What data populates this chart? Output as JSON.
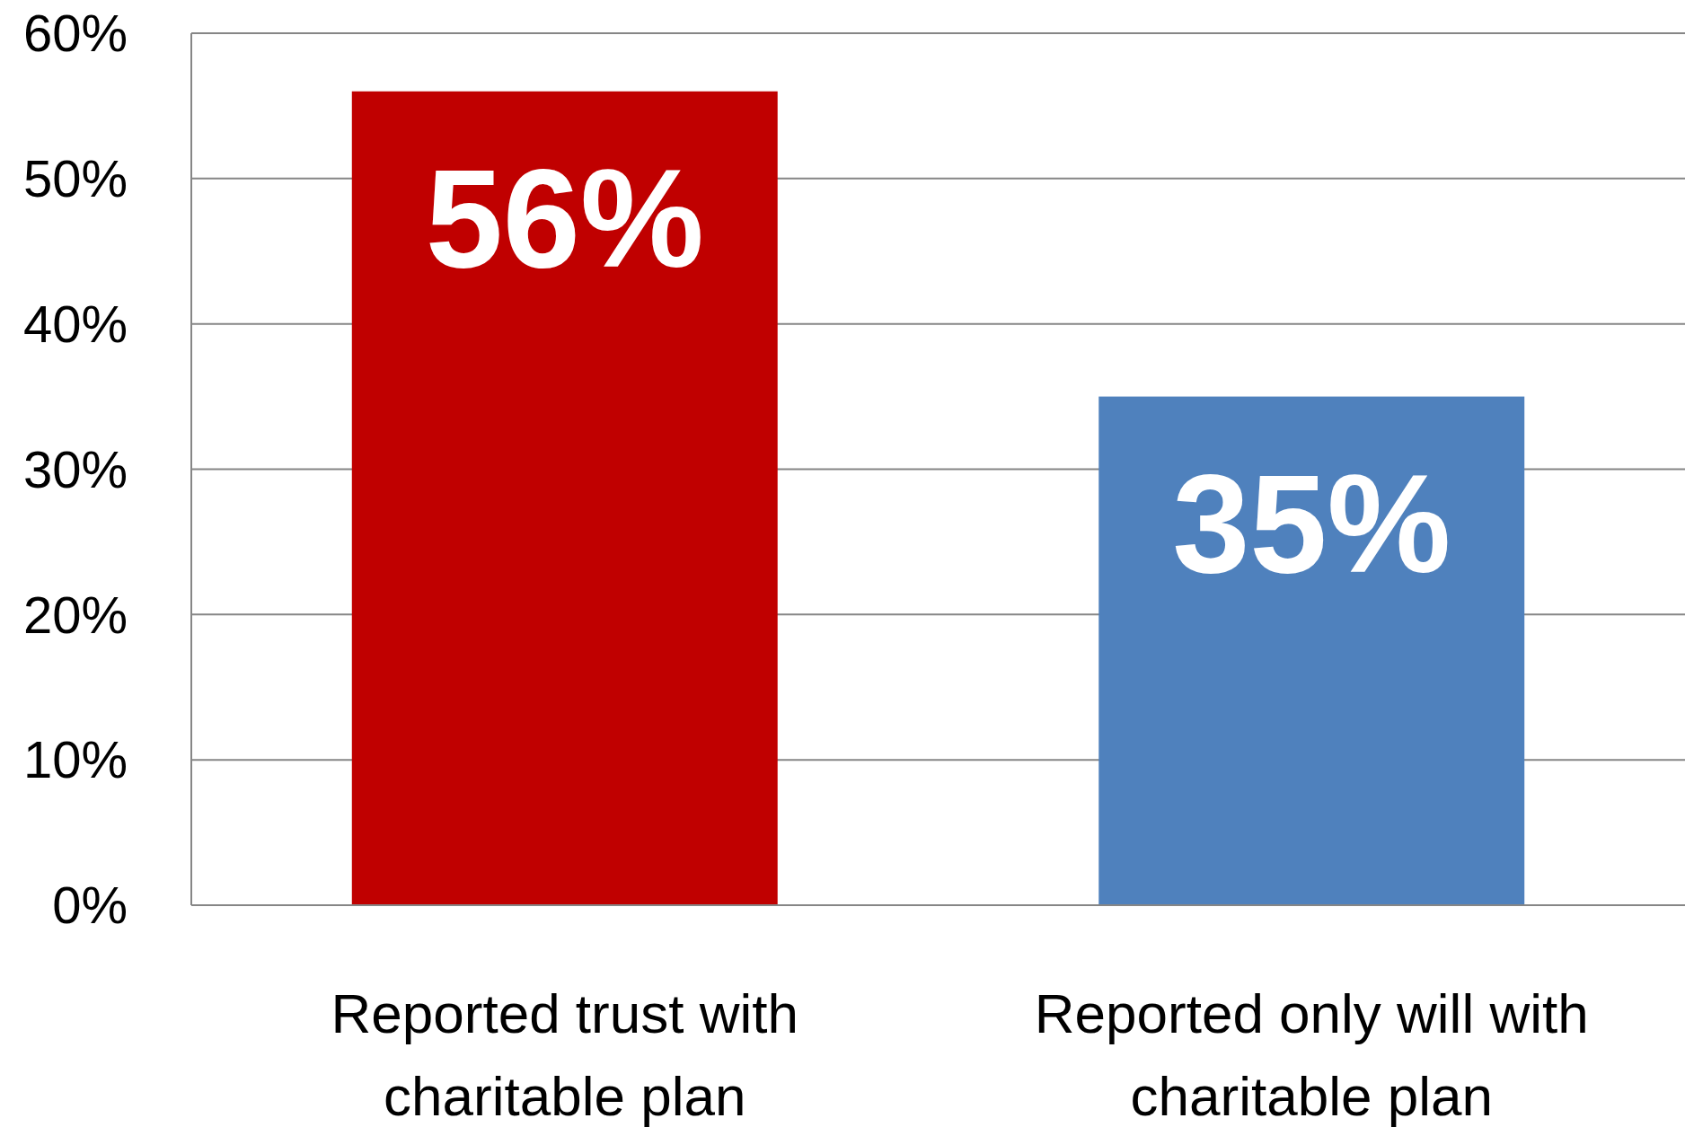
{
  "chart_data": {
    "type": "bar",
    "categories": [
      "Reported trust with charitable plan",
      "Reported only will with charitable plan"
    ],
    "values": [
      56,
      35
    ],
    "colors": [
      "#c00000",
      "#4f81bd"
    ],
    "value_labels": [
      "56%",
      "35%"
    ],
    "ylim": [
      0,
      60
    ],
    "yticks": [
      {
        "value": 0,
        "label": "0%"
      },
      {
        "value": 10,
        "label": "10%"
      },
      {
        "value": 20,
        "label": "20%"
      },
      {
        "value": 30,
        "label": "30%"
      },
      {
        "value": 40,
        "label": "40%"
      },
      {
        "value": 50,
        "label": "50%"
      },
      {
        "value": 60,
        "label": "60%"
      }
    ],
    "grid": "y"
  }
}
